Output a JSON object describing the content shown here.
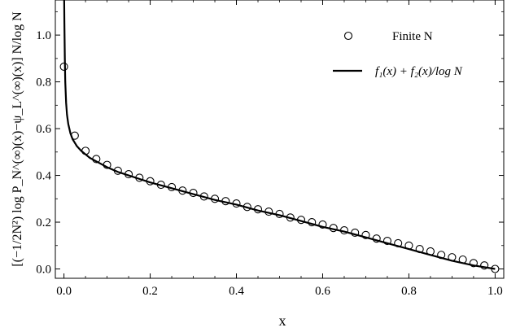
{
  "chart_data": {
    "type": "scatter",
    "xlabel": "x",
    "ylabel": "[(−1/2N²) log P_N^(∞)(x)−ψ_L^(∞)(x)] N/log N",
    "xlim": [
      -0.02,
      1.02
    ],
    "ylim": [
      -0.04,
      1.15
    ],
    "x_ticks": [
      "0.0",
      "0.2",
      "0.4",
      "0.6",
      "0.8",
      "1.0"
    ],
    "y_ticks": [
      "0.0",
      "0.2",
      "0.4",
      "0.6",
      "0.8",
      "1.0"
    ],
    "grid": false,
    "legend_position": "top-right",
    "series": [
      {
        "name": "Finite N",
        "style": "open-circles",
        "x": [
          0.0,
          0.025,
          0.05,
          0.075,
          0.1,
          0.125,
          0.15,
          0.175,
          0.2,
          0.225,
          0.25,
          0.275,
          0.3,
          0.325,
          0.35,
          0.375,
          0.4,
          0.425,
          0.45,
          0.475,
          0.5,
          0.525,
          0.55,
          0.575,
          0.6,
          0.625,
          0.65,
          0.675,
          0.7,
          0.725,
          0.75,
          0.775,
          0.8,
          0.825,
          0.85,
          0.875,
          0.9,
          0.925,
          0.95,
          0.975,
          1.0
        ],
        "y": [
          0.865,
          0.57,
          0.505,
          0.47,
          0.445,
          0.42,
          0.405,
          0.39,
          0.375,
          0.36,
          0.35,
          0.335,
          0.325,
          0.31,
          0.3,
          0.29,
          0.28,
          0.265,
          0.255,
          0.245,
          0.235,
          0.22,
          0.21,
          0.2,
          0.19,
          0.175,
          0.165,
          0.155,
          0.145,
          0.13,
          0.12,
          0.11,
          0.1,
          0.085,
          0.075,
          0.06,
          0.05,
          0.04,
          0.025,
          0.015,
          0.0
        ]
      },
      {
        "name": "f₁(x) + f₂(x)/log N",
        "style": "solid-line",
        "x": [
          0.0005,
          0.001,
          0.002,
          0.003,
          0.005,
          0.007,
          0.01,
          0.015,
          0.02,
          0.025,
          0.03,
          0.04,
          0.05,
          0.06,
          0.075,
          0.1,
          0.125,
          0.15,
          0.175,
          0.2,
          0.25,
          0.3,
          0.35,
          0.4,
          0.45,
          0.5,
          0.55,
          0.6,
          0.65,
          0.7,
          0.75,
          0.8,
          0.85,
          0.9,
          0.95,
          1.0
        ],
        "y": [
          1.15,
          1.05,
          0.9,
          0.8,
          0.71,
          0.66,
          0.62,
          0.58,
          0.555,
          0.54,
          0.525,
          0.505,
          0.49,
          0.475,
          0.46,
          0.435,
          0.415,
          0.4,
          0.385,
          0.37,
          0.345,
          0.32,
          0.295,
          0.275,
          0.25,
          0.23,
          0.205,
          0.18,
          0.16,
          0.135,
          0.11,
          0.085,
          0.06,
          0.035,
          0.015,
          0.0
        ]
      }
    ]
  },
  "legend": {
    "items": [
      {
        "label": "Finite N",
        "marker": "circle"
      },
      {
        "label": "f₁(x) + f₂(x)/log N",
        "marker": "line"
      }
    ]
  },
  "colors": {
    "ink": "#000000",
    "background": "#ffffff"
  }
}
